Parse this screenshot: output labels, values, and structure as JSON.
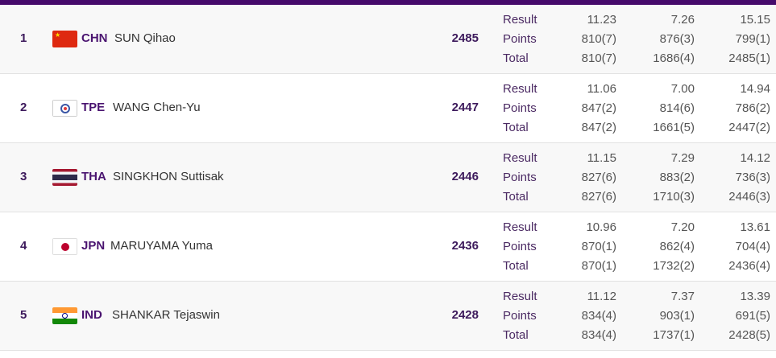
{
  "colors": {
    "accent": "#460a6b"
  },
  "row_labels": [
    "Result",
    "Points",
    "Total"
  ],
  "athletes": [
    {
      "rank": "1",
      "noc": "CHN",
      "name": "SUN Qihao",
      "flag": "china-flag-icon",
      "score": "2485",
      "result": [
        "11.23",
        "7.26",
        "15.15"
      ],
      "points": [
        "810(7)",
        "876(3)",
        "799(1)"
      ],
      "total": [
        "810(7)",
        "1686(4)",
        "2485(1)"
      ]
    },
    {
      "rank": "2",
      "noc": "TPE",
      "name": "WANG Chen-Yu",
      "flag": "chinese-taipei-flag-icon",
      "score": "2447",
      "result": [
        "11.06",
        "7.00",
        "14.94"
      ],
      "points": [
        "847(2)",
        "814(6)",
        "786(2)"
      ],
      "total": [
        "847(2)",
        "1661(5)",
        "2447(2)"
      ]
    },
    {
      "rank": "3",
      "noc": "THA",
      "name": "SINGKHON Suttisak",
      "flag": "thailand-flag-icon",
      "score": "2446",
      "result": [
        "11.15",
        "7.29",
        "14.12"
      ],
      "points": [
        "827(6)",
        "883(2)",
        "736(3)"
      ],
      "total": [
        "827(6)",
        "1710(3)",
        "2446(3)"
      ]
    },
    {
      "rank": "4",
      "noc": "JPN",
      "name": "MARUYAMA Yuma",
      "flag": "japan-flag-icon",
      "score": "2436",
      "result": [
        "10.96",
        "7.20",
        "13.61"
      ],
      "points": [
        "870(1)",
        "862(4)",
        "704(4)"
      ],
      "total": [
        "870(1)",
        "1732(2)",
        "2436(4)"
      ]
    },
    {
      "rank": "5",
      "noc": "IND",
      "name": "SHANKAR Tejaswin",
      "flag": "india-flag-icon",
      "score": "2428",
      "result": [
        "11.12",
        "7.37",
        "13.39"
      ],
      "points": [
        "834(4)",
        "903(1)",
        "691(5)"
      ],
      "total": [
        "834(4)",
        "1737(1)",
        "2428(5)"
      ]
    }
  ]
}
